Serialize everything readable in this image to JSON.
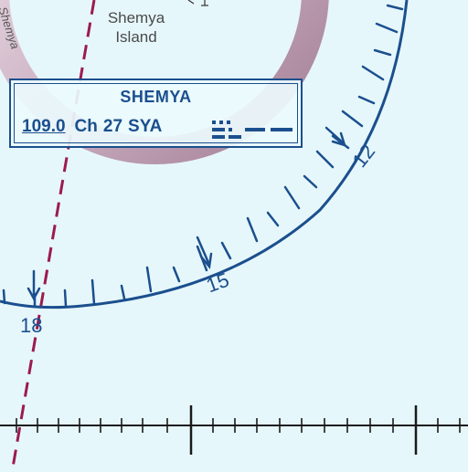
{
  "map": {
    "island_label_line1": "Shemya",
    "island_label_line2": "Island",
    "edge_label": "Shemya",
    "navaid": {
      "name": "SHEMYA",
      "frequency": "109.0",
      "channel_label": "Ch",
      "channel": "27",
      "identifier": "SYA",
      "morse_code": "... -.-- .-"
    },
    "compass_rose_labels": {
      "r12": "12",
      "r15": "15",
      "r18": "18"
    },
    "colors": {
      "water": "#e6f7fb",
      "navaid_blue": "#1b4f8e",
      "boundary_dashed": "#9b1b4f",
      "airspace_ring": "#b28aa3",
      "grid_black": "#1a1a1a"
    }
  }
}
